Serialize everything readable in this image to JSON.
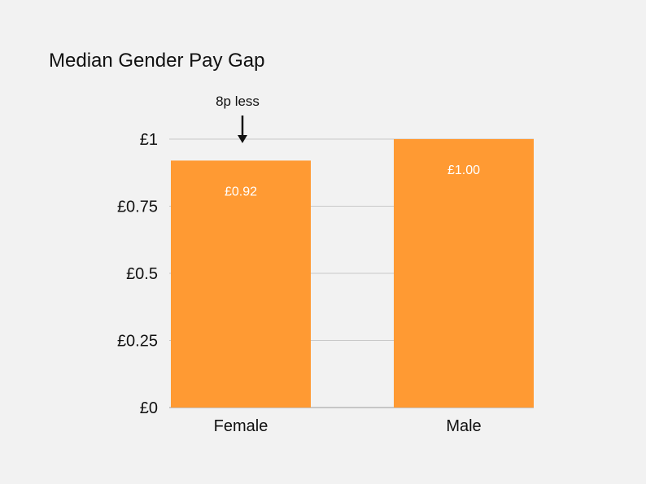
{
  "chart_data": {
    "type": "bar",
    "title": "Median Gender Pay Gap",
    "xlabel": "",
    "ylabel": "",
    "categories": [
      "Female",
      "Male"
    ],
    "values": [
      0.92,
      1.0
    ],
    "data_labels": [
      "£0.92",
      "£1.00"
    ],
    "ylim": [
      0,
      1
    ],
    "yticks": [
      0,
      0.25,
      0.5,
      0.75,
      1
    ],
    "ytick_labels": [
      "£0",
      "£0.25",
      "£0.5",
      "£0.75",
      "£1"
    ],
    "grid": true,
    "legend": "none",
    "bar_color": "#ff9a33",
    "annotation": {
      "text": "8p less",
      "target_category": "Female",
      "target_value": 1
    }
  }
}
